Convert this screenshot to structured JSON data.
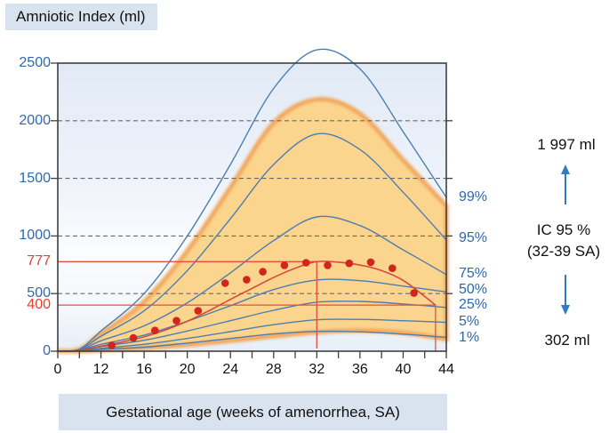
{
  "title": "Amniotic Index (ml)",
  "x_axis_label": "Gestational age (weeks of amenorrhea, SA)",
  "annotations": {
    "upper_value": "1 997 ml",
    "ic_line1": "IC 95 %",
    "ic_line2": "(32-39 SA)",
    "lower_value": "302 ml"
  },
  "colors": {
    "label_blue": "#2e68ad",
    "curve_blue": "#4b7fb0",
    "arrow_blue": "#2e7cc3",
    "red_label": "#e8402e",
    "red_line": "#e2503f",
    "red_curve": "#d84437",
    "red_dot": "#cf271b",
    "band_fill": "#fbd48e",
    "band_edge": "#f1a558",
    "grid_gray": "#686868",
    "axis_gray": "#3f3f3f",
    "box_bg": "#d9e3f0"
  },
  "chart_data": {
    "type": "line",
    "title": "Amniotic Index (ml)",
    "xlabel": "Gestational age (weeks of amenorrhea, SA)",
    "ylabel": "Amniotic Index (ml)",
    "xlim_weeks": [
      0,
      44
    ],
    "ylim": [
      0,
      2500
    ],
    "x_axis_note": "axis compressed between weeks 0 and 12; ticks every 2 weeks from 12 to 44, one unlabeled tick at week 6",
    "x_tick_weeks": [
      0,
      6,
      12,
      14,
      16,
      18,
      20,
      22,
      24,
      26,
      28,
      30,
      32,
      34,
      36,
      38,
      40,
      42,
      44
    ],
    "x_labeled_weeks": [
      0,
      12,
      16,
      20,
      24,
      28,
      32,
      36,
      40,
      44
    ],
    "y_ticks": [
      0,
      500,
      1000,
      1500,
      2000,
      2500
    ],
    "grid_values": [
      500,
      1000,
      1500,
      2000
    ],
    "legend_position": "right of plot",
    "grid": "dashed horizontal",
    "percentile_series": [
      {
        "name": "1%",
        "weeks": [
          0,
          6,
          12,
          16,
          20,
          24,
          28,
          32,
          36,
          40,
          44
        ],
        "values": [
          0,
          2,
          15,
          35,
          70,
          110,
          150,
          172,
          168,
          148,
          120
        ],
        "right_label_ml": 115
      },
      {
        "name": "5%",
        "weeks": [
          0,
          6,
          12,
          16,
          20,
          24,
          28,
          32,
          36,
          40,
          44
        ],
        "values": [
          0,
          4,
          25,
          60,
          110,
          170,
          230,
          272,
          276,
          265,
          250
        ],
        "right_label_ml": 255
      },
      {
        "name": "25%",
        "weeks": [
          0,
          6,
          12,
          16,
          20,
          24,
          28,
          32,
          36,
          40,
          44
        ],
        "values": [
          0,
          6,
          40,
          95,
          175,
          265,
          355,
          425,
          432,
          410,
          380
        ],
        "right_label_ml": 400
      },
      {
        "name": "50%",
        "weeks": [
          0,
          6,
          12,
          16,
          20,
          24,
          28,
          32,
          36,
          40,
          44
        ],
        "values": [
          0,
          8,
          60,
          140,
          260,
          395,
          535,
          618,
          612,
          565,
          515
        ],
        "right_label_ml": 530
      },
      {
        "name": "75%",
        "weeks": [
          0,
          6,
          12,
          16,
          20,
          24,
          28,
          32,
          36,
          40,
          44
        ],
        "values": [
          0,
          10,
          90,
          220,
          420,
          680,
          960,
          1165,
          1090,
          880,
          665
        ],
        "right_label_ml": 670
      },
      {
        "name": "95%",
        "weeks": [
          0,
          6,
          12,
          16,
          20,
          24,
          28,
          32,
          36,
          40,
          44
        ],
        "values": [
          0,
          14,
          130,
          350,
          700,
          1150,
          1620,
          1885,
          1750,
          1380,
          965
        ],
        "right_label_ml": 980
      },
      {
        "name": "99%",
        "weeks": [
          0,
          6,
          12,
          16,
          20,
          24,
          28,
          32,
          36,
          40,
          44
        ],
        "values": [
          0,
          18,
          175,
          500,
          1000,
          1620,
          2280,
          2615,
          2450,
          1905,
          1335
        ],
        "right_label_ml": 1335
      }
    ],
    "shaded_band": {
      "description": "orange reference band between extreme percentiles",
      "weeks": [
        0,
        6,
        12,
        16,
        20,
        24,
        28,
        32,
        36,
        40,
        44
      ],
      "top": [
        0,
        16,
        150,
        430,
        870,
        1420,
        1980,
        2185,
        2060,
        1660,
        1260
      ],
      "bottom": [
        0,
        1,
        10,
        28,
        55,
        90,
        130,
        165,
        180,
        160,
        105
      ]
    },
    "mean_curve": {
      "name": "observed mean curve (red)",
      "weeks": [
        0,
        6,
        12,
        14,
        16,
        18,
        20,
        22,
        24,
        26,
        28,
        30,
        32,
        34,
        36,
        38,
        40,
        42,
        43
      ],
      "values": [
        0,
        5,
        45,
        80,
        125,
        185,
        260,
        350,
        450,
        545,
        640,
        720,
        777,
        772,
        748,
        700,
        615,
        475,
        400
      ]
    },
    "data_points": {
      "name": "measured points (red dots)",
      "points": [
        [
          13,
          50
        ],
        [
          15,
          115
        ],
        [
          17,
          180
        ],
        [
          19,
          265
        ],
        [
          21,
          350
        ],
        [
          23.5,
          590
        ],
        [
          25.5,
          620
        ],
        [
          27,
          690
        ],
        [
          29,
          745
        ],
        [
          31,
          768
        ],
        [
          33,
          745
        ],
        [
          35,
          762
        ],
        [
          37,
          772
        ],
        [
          39,
          720
        ],
        [
          41,
          505
        ]
      ]
    },
    "reference_lines": {
      "upper_value": 777,
      "upper_label": "777",
      "upper_end_week": 32,
      "lower_value": 400,
      "lower_label": "400",
      "lower_end_week": 43
    },
    "ic_annotation": {
      "upper_ml": "1 997 ml",
      "lower_ml": "302 ml",
      "interval": "IC 95 %",
      "range": "(32-39 SA)"
    }
  }
}
